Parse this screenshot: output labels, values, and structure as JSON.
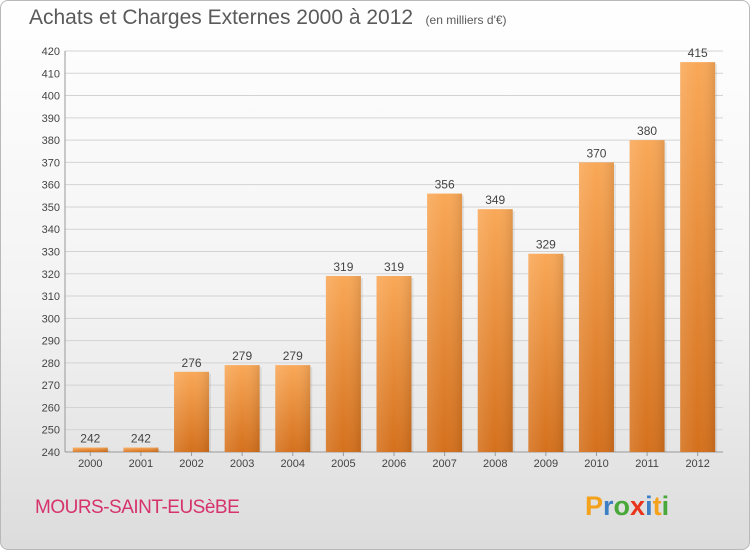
{
  "title": {
    "main": "Achats et Charges Externes 2000 à 2012",
    "unit": "(en milliers d'€)"
  },
  "commune": "MOURS-SAINT-EUSèBE",
  "logo": {
    "text": "Proxiti",
    "letters": [
      {
        "ch": "P",
        "color": "#f4a11c"
      },
      {
        "ch": "r",
        "color": "#3d7fc4"
      },
      {
        "ch": "o",
        "color": "#4aa83a"
      },
      {
        "ch": "x",
        "color": "#e8341c"
      },
      {
        "ch": "i",
        "color": "#3d7fc4"
      },
      {
        "ch": "t",
        "color": "#f4a11c"
      },
      {
        "ch": "i",
        "color": "#4aa83a"
      }
    ]
  },
  "colors": {
    "bar_top": "#f9a857",
    "bar_bottom": "#d4701c",
    "grid": "#d3d3d3",
    "text": "#444444",
    "commune": "#d6336c"
  },
  "chart_data": {
    "type": "bar",
    "categories": [
      "2000",
      "2001",
      "2002",
      "2003",
      "2004",
      "2005",
      "2006",
      "2007",
      "2008",
      "2009",
      "2010",
      "2011",
      "2012"
    ],
    "values": [
      242,
      242,
      276,
      279,
      279,
      319,
      319,
      356,
      349,
      329,
      370,
      380,
      415
    ],
    "ylim": [
      240,
      420
    ],
    "yticks": [
      240,
      250,
      260,
      270,
      280,
      290,
      300,
      310,
      320,
      330,
      340,
      350,
      360,
      370,
      380,
      390,
      400,
      410,
      420
    ],
    "grid": true,
    "data_labels": true
  }
}
